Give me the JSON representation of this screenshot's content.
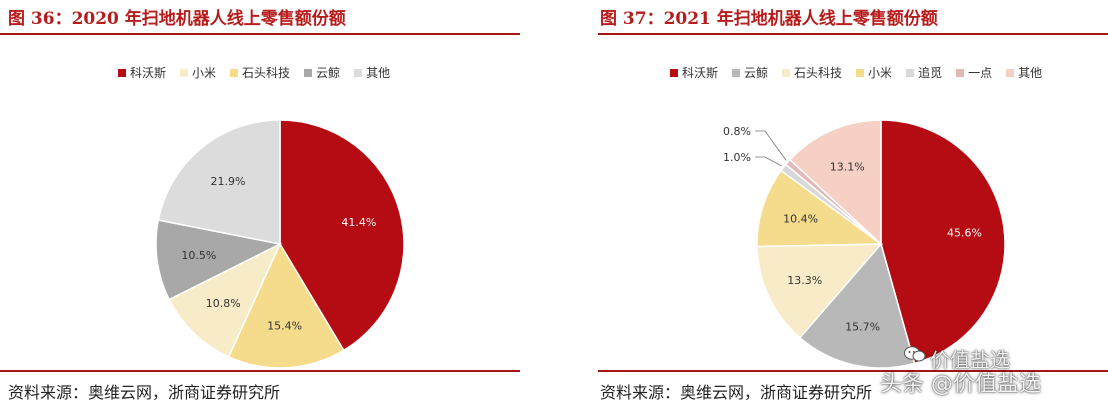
{
  "left": {
    "title": "图 36：2020 年扫地机器人线上零售额份额",
    "source": "资料来源：奥维云网，浙商证券研究所"
  },
  "right": {
    "title": "图 37：2021 年扫地机器人线上零售额份额",
    "source": "资料来源：奥维云网，浙商证券研究所"
  },
  "watermark": {
    "line1": "价值盐选",
    "line2": "头条 @价值盐选"
  },
  "chart_data": [
    {
      "type": "pie",
      "title": "2020 年扫地机器人线上零售额份额",
      "legend_position": "top",
      "slices": [
        {
          "label": "科沃斯",
          "value": 41.4,
          "display": "41.4%",
          "color": "#b50b12"
        },
        {
          "label": "石头科技",
          "value": 15.4,
          "display": "15.4%",
          "color": "#f5dc8c"
        },
        {
          "label": "小米",
          "value": 10.8,
          "display": "10.8%",
          "color": "#f8ecc8"
        },
        {
          "label": "云鲸",
          "value": 10.5,
          "display": "10.5%",
          "color": "#a8a8a8"
        },
        {
          "label": "其他",
          "value": 21.9,
          "display": "21.9%",
          "color": "#dcdcdc"
        }
      ],
      "legend": [
        {
          "label": "科沃斯",
          "color": "#b50b12"
        },
        {
          "label": "小米",
          "color": "#f8ecc8"
        },
        {
          "label": "石头科技",
          "color": "#f5dc8c"
        },
        {
          "label": "云鲸",
          "color": "#a8a8a8"
        },
        {
          "label": "其他",
          "color": "#dcdcdc"
        }
      ]
    },
    {
      "type": "pie",
      "title": "2021 年扫地机器人线上零售额份额",
      "legend_position": "top",
      "slices": [
        {
          "label": "科沃斯",
          "value": 45.6,
          "display": "45.6%",
          "color": "#b50b12"
        },
        {
          "label": "云鲸",
          "value": 15.7,
          "display": "15.7%",
          "color": "#b8b8b8"
        },
        {
          "label": "石头科技",
          "value": 13.3,
          "display": "13.3%",
          "color": "#f8ecc8"
        },
        {
          "label": "小米",
          "value": 10.4,
          "display": "10.4%",
          "color": "#f5dc8c"
        },
        {
          "label": "追觅",
          "value": 1.0,
          "display": "1.0%",
          "color": "#d8d8d8"
        },
        {
          "label": "一点",
          "value": 0.8,
          "display": "0.8%",
          "color": "#e2b8b8"
        },
        {
          "label": "其他",
          "value": 13.1,
          "display": "13.1%",
          "color": "#f6d0c4"
        }
      ],
      "legend": [
        {
          "label": "科沃斯",
          "color": "#b50b12"
        },
        {
          "label": "云鲸",
          "color": "#b8b8b8"
        },
        {
          "label": "石头科技",
          "color": "#f8ecc8"
        },
        {
          "label": "小米",
          "color": "#f5dc8c"
        },
        {
          "label": "追觅",
          "color": "#d8d8d8"
        },
        {
          "label": "一点",
          "color": "#e2b8b8"
        },
        {
          "label": "其他",
          "color": "#f6d0c4"
        }
      ]
    }
  ]
}
